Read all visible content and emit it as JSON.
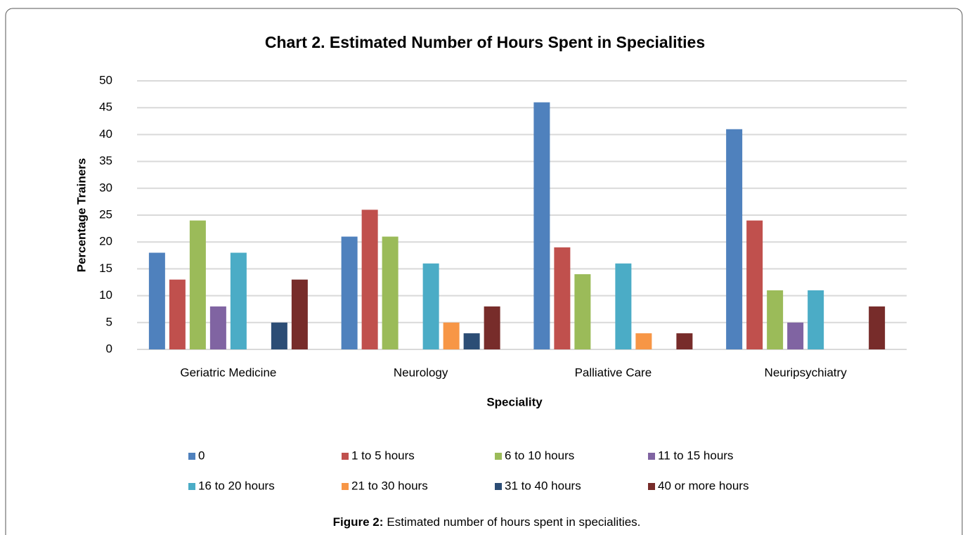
{
  "chart_data": {
    "type": "bar",
    "title": "Chart 2. Estimated Number of Hours Spent in Specialities",
    "x_label": "Speciality",
    "y_label": "Percentage Trainers",
    "categories": [
      "Geriatric Medicine",
      "Neurology",
      "Palliative Care",
      "Neuripsychiatry"
    ],
    "series": [
      {
        "name": "0",
        "color": "#4f81bd",
        "values": [
          18,
          21,
          46,
          41
        ]
      },
      {
        "name": "1 to 5 hours",
        "color": "#c0504d",
        "values": [
          13,
          26,
          19,
          24
        ]
      },
      {
        "name": "6 to 10 hours",
        "color": "#9bbb59",
        "values": [
          24,
          21,
          14,
          11
        ]
      },
      {
        "name": "11 to 15 hours",
        "color": "#8064a2",
        "values": [
          8,
          0,
          0,
          5
        ]
      },
      {
        "name": "16 to 20 hours",
        "color": "#4bacc6",
        "values": [
          18,
          16,
          16,
          11
        ]
      },
      {
        "name": "21 to 30 hours",
        "color": "#f79646",
        "values": [
          0,
          5,
          3,
          0
        ]
      },
      {
        "name": "31 to 40 hours",
        "color": "#2c4d75",
        "values": [
          5,
          3,
          0,
          0
        ]
      },
      {
        "name": "40 or more hours",
        "color": "#772c2a",
        "values": [
          13,
          8,
          3,
          8
        ]
      }
    ],
    "ylim": [
      0,
      50
    ],
    "yticks": [
      0,
      5,
      10,
      15,
      20,
      25,
      30,
      35,
      40,
      45,
      50
    ],
    "grid": true,
    "legend": "bottom"
  },
  "figure_caption": {
    "label": "Figure 2:",
    "text": "Estimated number of hours spent in specialities."
  }
}
